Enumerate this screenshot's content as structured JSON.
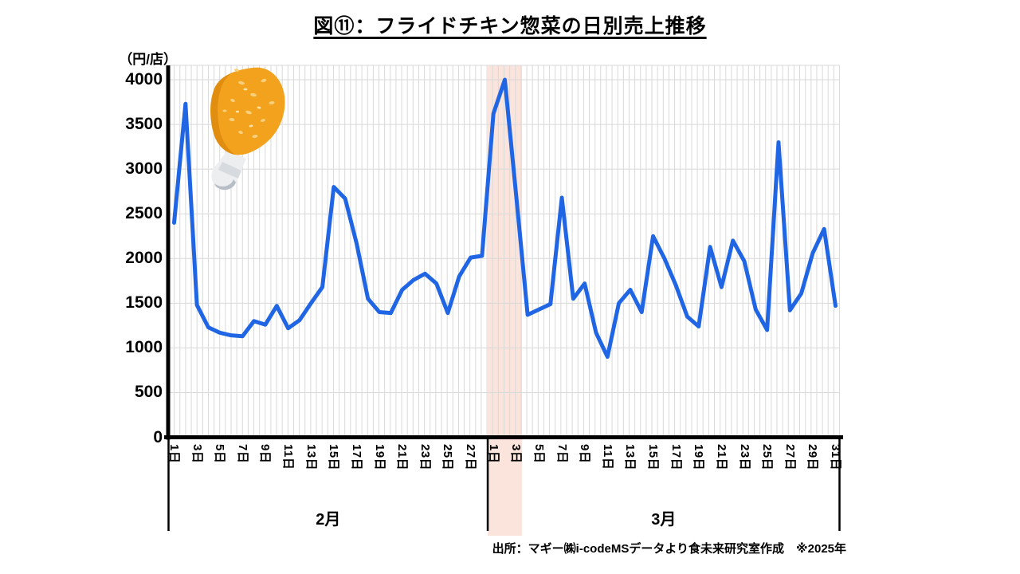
{
  "title": "図⑪：フライドチキン惣菜の日別売上推移",
  "y_axis": {
    "unit": "（円/店）",
    "tick_labels": [
      "4000",
      "3500",
      "3000",
      "2500",
      "2000",
      "1500",
      "1000",
      "500",
      "0"
    ]
  },
  "x_axis": {
    "months": [
      {
        "label": "2月",
        "days": 28,
        "tick_labels": [
          "1日",
          "3日",
          "5日",
          "7日",
          "9日",
          "11日",
          "13日",
          "15日",
          "17日",
          "19日",
          "21日",
          "23日",
          "25日",
          "27日"
        ]
      },
      {
        "label": "3月",
        "days": 31,
        "tick_labels": [
          "1日",
          "3日",
          "5日",
          "7日",
          "9日",
          "11日",
          "13日",
          "15日",
          "17日",
          "19日",
          "21日",
          "23日",
          "25日",
          "27日",
          "29日",
          "31日"
        ]
      }
    ]
  },
  "source": "出所：マギー㈱i-codeMSデータより食未来研究室作成　※2025年",
  "colors": {
    "line": "#2066e4",
    "highlight_band": "#fae4dc",
    "gridline": "#d9d9d9",
    "axis": "#000000"
  },
  "chart_data": {
    "type": "line",
    "title": "図⑪：フライドチキン惣菜の日別売上推移",
    "ylabel": "円/店",
    "ylim": [
      0,
      4000
    ],
    "y_tick_step": 500,
    "grid": true,
    "legend": false,
    "highlight_region": {
      "from": "3月1日",
      "to": "3月3日"
    },
    "categories": [
      "2月1日",
      "2月2日",
      "2月3日",
      "2月4日",
      "2月5日",
      "2月6日",
      "2月7日",
      "2月8日",
      "2月9日",
      "2月10日",
      "2月11日",
      "2月12日",
      "2月13日",
      "2月14日",
      "2月15日",
      "2月16日",
      "2月17日",
      "2月18日",
      "2月19日",
      "2月20日",
      "2月21日",
      "2月22日",
      "2月23日",
      "2月24日",
      "2月25日",
      "2月26日",
      "2月27日",
      "2月28日",
      "3月1日",
      "3月2日",
      "3月3日",
      "3月4日",
      "3月5日",
      "3月6日",
      "3月7日",
      "3月8日",
      "3月9日",
      "3月10日",
      "3月11日",
      "3月12日",
      "3月13日",
      "3月14日",
      "3月15日",
      "3月16日",
      "3月17日",
      "3月18日",
      "3月19日",
      "3月20日",
      "3月21日",
      "3月22日",
      "3月23日",
      "3月24日",
      "3月25日",
      "3月26日",
      "3月27日",
      "3月28日",
      "3月29日",
      "3月30日",
      "3月31日"
    ],
    "series": [
      {
        "name": "フライドチキン惣菜 日別売上",
        "values": [
          2400,
          3730,
          1480,
          1230,
          1170,
          1140,
          1130,
          1300,
          1260,
          1470,
          1220,
          1310,
          1500,
          1680,
          2800,
          2670,
          2170,
          1550,
          1400,
          1390,
          1650,
          1760,
          1830,
          1720,
          1390,
          1800,
          2010,
          2030,
          3620,
          4000,
          2700,
          1370,
          1430,
          1490,
          2680,
          1550,
          1720,
          1170,
          900,
          1500,
          1650,
          1400,
          2250,
          2000,
          1700,
          1350,
          1240,
          2130,
          1680,
          2200,
          1970,
          1430,
          1200,
          3300,
          1420,
          1610,
          2060,
          2330,
          1470
        ]
      }
    ]
  }
}
